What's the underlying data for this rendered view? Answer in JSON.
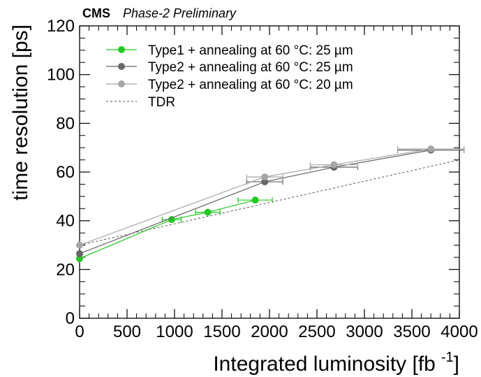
{
  "header": {
    "experiment": "CMS",
    "status": "Phase-2 Preliminary"
  },
  "colors": {
    "green": "#1fcc1f",
    "dark_gray": "#666666",
    "light_gray": "#a6a6a6",
    "tdr": "#555555"
  },
  "chart_data": {
    "type": "line",
    "xlabel": "Integrated luminosity [fb",
    "xlabel_unit_sup": "-1",
    "xlabel_close": "]",
    "ylabel": "time resolution [ps]",
    "xlim": [
      0,
      4000
    ],
    "ylim": [
      0,
      120
    ],
    "x_ticks": [
      "0",
      "500",
      "1000",
      "1500",
      "2000",
      "2500",
      "3000",
      "3500",
      "4000"
    ],
    "y_ticks": [
      "0",
      "20",
      "40",
      "60",
      "80",
      "100",
      "120"
    ],
    "grid": false,
    "legend_position": "top-left",
    "series": [
      {
        "name": "Type1 + annealing at 60 °C: 25 µm",
        "color_key": "green",
        "points": [
          {
            "x": 0,
            "y": 24.5,
            "xerr": 0
          },
          {
            "x": 970,
            "y": 40.5,
            "xerr": 100
          },
          {
            "x": 1350,
            "y": 43.5,
            "xerr": 130
          },
          {
            "x": 1850,
            "y": 48.5,
            "xerr": 180
          }
        ]
      },
      {
        "name": "Type2 + annealing at 60 °C: 25 µm",
        "color_key": "dark_gray",
        "points": [
          {
            "x": 0,
            "y": 26.5,
            "xerr": 0
          },
          {
            "x": 1950,
            "y": 56.0,
            "xerr": 190
          },
          {
            "x": 2680,
            "y": 62.0,
            "xerr": 250
          },
          {
            "x": 3700,
            "y": 69.0,
            "xerr": 350
          }
        ]
      },
      {
        "name": "Type2 + annealing at 60 °C: 20 µm",
        "color_key": "light_gray",
        "points": [
          {
            "x": 0,
            "y": 30.0,
            "xerr": 0
          },
          {
            "x": 1950,
            "y": 58.0,
            "xerr": 190
          },
          {
            "x": 2680,
            "y": 63.0,
            "xerr": 250
          },
          {
            "x": 3700,
            "y": 69.5,
            "xerr": 350
          }
        ]
      },
      {
        "name": "TDR",
        "color_key": "tdr",
        "dashed": true,
        "points": [
          {
            "x": 0,
            "y": 30.0
          },
          {
            "x": 4000,
            "y": 65.0
          }
        ]
      }
    ]
  }
}
